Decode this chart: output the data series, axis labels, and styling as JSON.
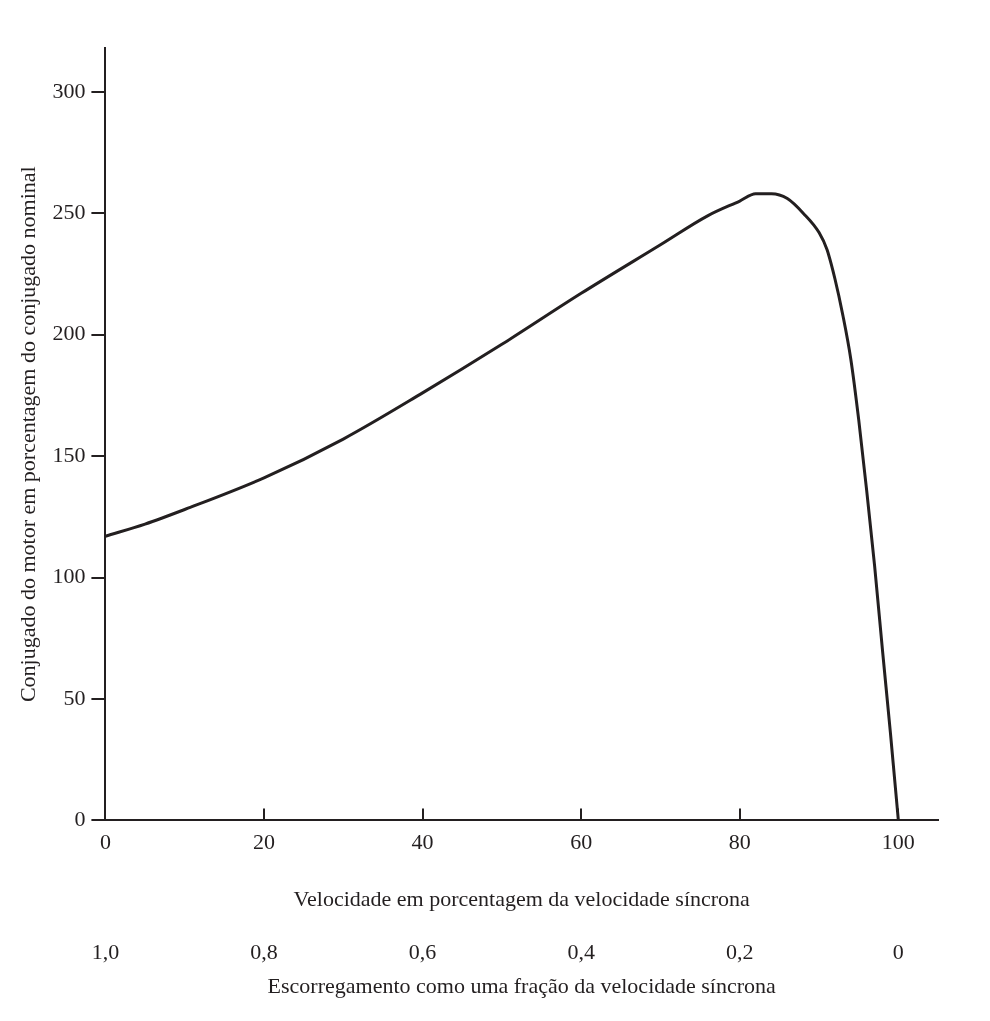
{
  "chart_data": {
    "type": "line",
    "xlabel": "Velocidade em porcentagem da velocidade síncrona",
    "ylabel": "Conjugado do motor em porcentagem do conjugado nominal",
    "x2label": "Escorregamento como uma fração da velocidade síncrona",
    "xlim": [
      0,
      105
    ],
    "xticks": [
      0,
      20,
      40,
      60,
      80,
      100
    ],
    "ylim": [
      0,
      318
    ],
    "yticks": [
      0,
      50,
      100,
      150,
      200,
      250,
      300
    ],
    "x2lim": [
      1,
      -0.05
    ],
    "x2ticks": [
      {
        "value": 1,
        "label": "1,0"
      },
      {
        "value": 0.8,
        "label": "0,8"
      },
      {
        "value": 0.6,
        "label": "0,6"
      },
      {
        "value": 0.4,
        "label": "0,4"
      },
      {
        "value": 0.2,
        "label": "0,2"
      },
      {
        "value": 0,
        "label": "0"
      }
    ],
    "series": [
      {
        "color": "#231f20",
        "x": [
          0,
          5,
          10,
          20,
          30,
          40,
          50,
          60,
          70,
          76,
          80,
          82,
          84,
          86,
          88,
          90,
          91,
          92,
          93,
          94,
          95,
          96,
          97,
          98,
          99,
          100
        ],
        "values": [
          117,
          122,
          128,
          141,
          157,
          176,
          196,
          217,
          237,
          249,
          255,
          258,
          258,
          256,
          250,
          242,
          235,
          223,
          208,
          190,
          165,
          136,
          105,
          70,
          36,
          0
        ]
      }
    ],
    "grid": false,
    "legend": false,
    "marker": "none",
    "line_style": "solid"
  }
}
